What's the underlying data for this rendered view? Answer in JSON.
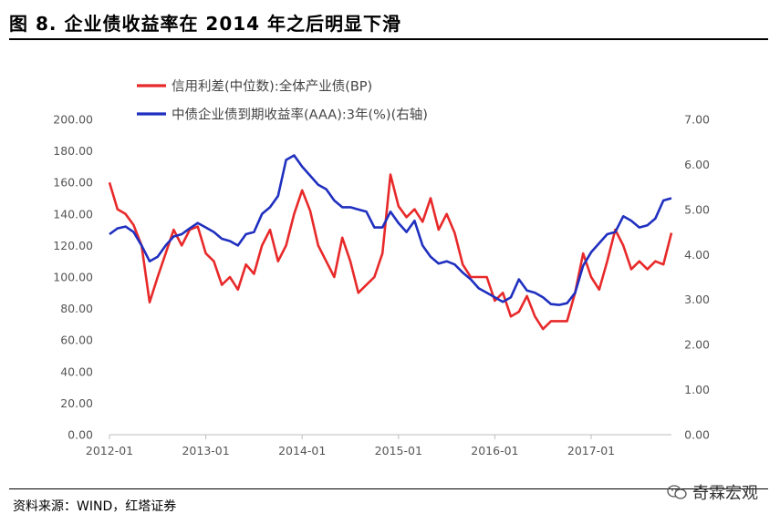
{
  "title": "图 8. 企业债收益率在 2014 年之后明显下滑",
  "source": "资料来源：WIND，红塔证券",
  "watermark": "奇霖宏观",
  "colors": {
    "series_red": "#e8292a",
    "series_blue": "#1f2fbf"
  },
  "chart_data": {
    "type": "line",
    "legend_placement": "top-center",
    "grid": false,
    "x_tick_labels": [
      "2012-01",
      "2013-01",
      "2014-01",
      "2015-01",
      "2016-01",
      "2017-01"
    ],
    "x_range": [
      "2012-01",
      "2017-11"
    ],
    "y_left": {
      "ticks": [
        "0.00",
        "20.00",
        "40.00",
        "60.00",
        "80.00",
        "100.00",
        "120.00",
        "140.00",
        "160.00",
        "180.00",
        "200.00"
      ],
      "range": [
        0,
        200
      ]
    },
    "y_right": {
      "ticks": [
        "0.00",
        "1.00",
        "2.00",
        "3.00",
        "4.00",
        "5.00",
        "6.00",
        "7.00"
      ],
      "range": [
        0,
        7
      ]
    },
    "series": [
      {
        "name": "信用利差(中位数):全体产业债(BP)",
        "axis": "left",
        "color": "#e8292a",
        "points": [
          [
            "2012-01",
            160
          ],
          [
            "2012-02",
            143
          ],
          [
            "2012-03",
            140
          ],
          [
            "2012-04",
            133
          ],
          [
            "2012-05",
            120
          ],
          [
            "2012-06",
            84
          ],
          [
            "2012-07",
            100
          ],
          [
            "2012-08",
            115
          ],
          [
            "2012-09",
            130
          ],
          [
            "2012-10",
            120
          ],
          [
            "2012-11",
            130
          ],
          [
            "2012-12",
            132
          ],
          [
            "2013-01",
            115
          ],
          [
            "2013-02",
            110
          ],
          [
            "2013-03",
            95
          ],
          [
            "2013-04",
            100
          ],
          [
            "2013-05",
            92
          ],
          [
            "2013-06",
            108
          ],
          [
            "2013-07",
            102
          ],
          [
            "2013-08",
            120
          ],
          [
            "2013-09",
            130
          ],
          [
            "2013-10",
            110
          ],
          [
            "2013-11",
            120
          ],
          [
            "2013-12",
            140
          ],
          [
            "2014-01",
            155
          ],
          [
            "2014-02",
            142
          ],
          [
            "2014-03",
            120
          ],
          [
            "2014-04",
            110
          ],
          [
            "2014-05",
            100
          ],
          [
            "2014-06",
            125
          ],
          [
            "2014-07",
            110
          ],
          [
            "2014-08",
            90
          ],
          [
            "2014-09",
            95
          ],
          [
            "2014-10",
            100
          ],
          [
            "2014-11",
            115
          ],
          [
            "2014-12",
            165
          ],
          [
            "2015-01",
            145
          ],
          [
            "2015-02",
            138
          ],
          [
            "2015-03",
            143
          ],
          [
            "2015-04",
            135
          ],
          [
            "2015-05",
            150
          ],
          [
            "2015-06",
            130
          ],
          [
            "2015-07",
            140
          ],
          [
            "2015-08",
            128
          ],
          [
            "2015-09",
            108
          ],
          [
            "2015-10",
            100
          ],
          [
            "2015-11",
            100
          ],
          [
            "2015-12",
            100
          ],
          [
            "2016-01",
            85
          ],
          [
            "2016-02",
            90
          ],
          [
            "2016-03",
            75
          ],
          [
            "2016-04",
            78
          ],
          [
            "2016-05",
            88
          ],
          [
            "2016-06",
            75
          ],
          [
            "2016-07",
            67
          ],
          [
            "2016-08",
            72
          ],
          [
            "2016-09",
            72
          ],
          [
            "2016-10",
            72
          ],
          [
            "2016-11",
            90
          ],
          [
            "2016-12",
            115
          ],
          [
            "2017-01",
            100
          ],
          [
            "2017-02",
            92
          ],
          [
            "2017-03",
            110
          ],
          [
            "2017-04",
            130
          ],
          [
            "2017-05",
            120
          ],
          [
            "2017-06",
            105
          ],
          [
            "2017-07",
            110
          ],
          [
            "2017-08",
            105
          ],
          [
            "2017-09",
            110
          ],
          [
            "2017-10",
            108
          ],
          [
            "2017-11",
            128
          ]
        ]
      },
      {
        "name": "中债企业债到期收益率(AAA):3年(%)(右轴)",
        "axis": "right",
        "color": "#1f2fbf",
        "points": [
          [
            "2012-01",
            4.45
          ],
          [
            "2012-02",
            4.58
          ],
          [
            "2012-03",
            4.62
          ],
          [
            "2012-04",
            4.5
          ],
          [
            "2012-05",
            4.2
          ],
          [
            "2012-06",
            3.85
          ],
          [
            "2012-07",
            3.95
          ],
          [
            "2012-08",
            4.2
          ],
          [
            "2012-09",
            4.4
          ],
          [
            "2012-10",
            4.45
          ],
          [
            "2012-11",
            4.58
          ],
          [
            "2012-12",
            4.7
          ],
          [
            "2013-01",
            4.6
          ],
          [
            "2013-02",
            4.5
          ],
          [
            "2013-03",
            4.35
          ],
          [
            "2013-04",
            4.3
          ],
          [
            "2013-05",
            4.2
          ],
          [
            "2013-06",
            4.45
          ],
          [
            "2013-07",
            4.5
          ],
          [
            "2013-08",
            4.9
          ],
          [
            "2013-09",
            5.05
          ],
          [
            "2013-10",
            5.3
          ],
          [
            "2013-11",
            6.1
          ],
          [
            "2013-12",
            6.2
          ],
          [
            "2014-01",
            5.95
          ],
          [
            "2014-02",
            5.75
          ],
          [
            "2014-03",
            5.55
          ],
          [
            "2014-04",
            5.45
          ],
          [
            "2014-05",
            5.2
          ],
          [
            "2014-06",
            5.05
          ],
          [
            "2014-07",
            5.05
          ],
          [
            "2014-08",
            5.0
          ],
          [
            "2014-09",
            4.95
          ],
          [
            "2014-10",
            4.6
          ],
          [
            "2014-11",
            4.6
          ],
          [
            "2014-12",
            4.95
          ],
          [
            "2015-01",
            4.7
          ],
          [
            "2015-02",
            4.5
          ],
          [
            "2015-03",
            4.75
          ],
          [
            "2015-04",
            4.2
          ],
          [
            "2015-05",
            3.95
          ],
          [
            "2015-06",
            3.8
          ],
          [
            "2015-07",
            3.85
          ],
          [
            "2015-08",
            3.78
          ],
          [
            "2015-09",
            3.6
          ],
          [
            "2015-10",
            3.45
          ],
          [
            "2015-11",
            3.25
          ],
          [
            "2015-12",
            3.15
          ],
          [
            "2016-01",
            3.05
          ],
          [
            "2016-02",
            2.95
          ],
          [
            "2016-03",
            3.05
          ],
          [
            "2016-04",
            3.45
          ],
          [
            "2016-05",
            3.2
          ],
          [
            "2016-06",
            3.15
          ],
          [
            "2016-07",
            3.05
          ],
          [
            "2016-08",
            2.9
          ],
          [
            "2016-09",
            2.88
          ],
          [
            "2016-10",
            2.92
          ],
          [
            "2016-11",
            3.15
          ],
          [
            "2016-12",
            3.75
          ],
          [
            "2017-01",
            4.05
          ],
          [
            "2017-02",
            4.25
          ],
          [
            "2017-03",
            4.45
          ],
          [
            "2017-04",
            4.5
          ],
          [
            "2017-05",
            4.85
          ],
          [
            "2017-06",
            4.75
          ],
          [
            "2017-07",
            4.6
          ],
          [
            "2017-08",
            4.65
          ],
          [
            "2017-09",
            4.8
          ],
          [
            "2017-10",
            5.2
          ],
          [
            "2017-11",
            5.25
          ]
        ]
      }
    ]
  }
}
